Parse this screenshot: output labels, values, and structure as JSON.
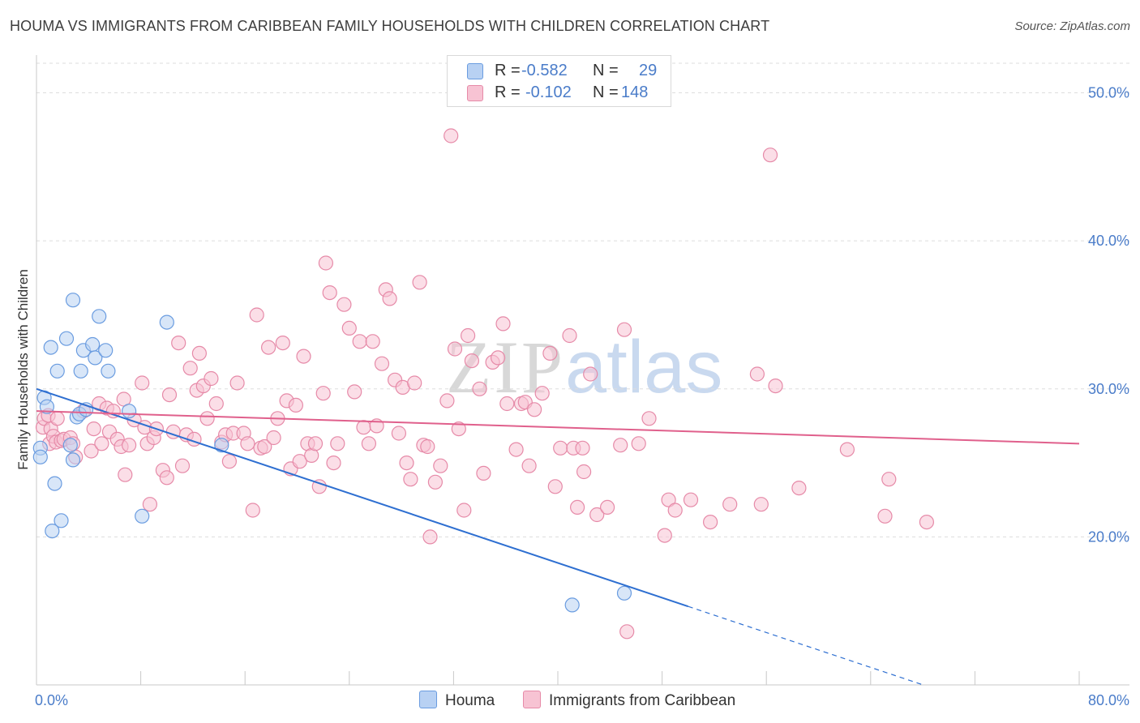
{
  "title": "HOUMA VS IMMIGRANTS FROM CARIBBEAN FAMILY HOUSEHOLDS WITH CHILDREN CORRELATION CHART",
  "source": "Source: ZipAtlas.com",
  "watermark": {
    "zip": "ZIP",
    "atlas": "atlas"
  },
  "colors": {
    "houma_fill": "#b8d1f3",
    "houma_stroke": "#6a9ce0",
    "houma_line": "#2e6fd1",
    "carib_fill": "#f7c3d3",
    "carib_stroke": "#e68aa8",
    "carib_line": "#e0608c",
    "tick_text": "#4a7cc9",
    "grid": "#dddddd"
  },
  "legend": {
    "rows": [
      {
        "r_label": "R =",
        "r_value": "-0.582",
        "n_label": "N =",
        "n_value": "29",
        "swatch": "houma"
      },
      {
        "r_label": "R =",
        "r_value": "-0.102",
        "n_label": "N =",
        "n_value": "148",
        "swatch": "carib"
      }
    ]
  },
  "bottom_legend": {
    "houma": "Houma",
    "carib": "Immigrants from Caribbean"
  },
  "chart_data": {
    "type": "scatter",
    "title": "HOUMA VS IMMIGRANTS FROM CARIBBEAN FAMILY HOUSEHOLDS WITH CHILDREN CORRELATION CHART",
    "xlabel": "",
    "ylabel": "Family Households with Children",
    "xlim": [
      0,
      80
    ],
    "ylim": [
      10,
      52
    ],
    "x_tick_labels": [
      "0.0%",
      "80.0%"
    ],
    "y_ticks": [
      20,
      30,
      40,
      50
    ],
    "y_tick_labels": [
      "20.0%",
      "30.0%",
      "40.0%",
      "50.0%"
    ],
    "grid": true,
    "legend_position": "top-center",
    "series": [
      {
        "name": "Houma",
        "r": -0.582,
        "n": 29,
        "trend": {
          "x0": 0,
          "y0": 30.0,
          "x1": 50,
          "y1": 15.3,
          "dashed_to_x": 68
        },
        "points": [
          [
            0.3,
            26.0
          ],
          [
            0.3,
            25.4
          ],
          [
            0.6,
            29.4
          ],
          [
            0.8,
            28.8
          ],
          [
            1.1,
            32.8
          ],
          [
            1.4,
            23.6
          ],
          [
            1.6,
            31.2
          ],
          [
            1.9,
            21.1
          ],
          [
            1.2,
            20.4
          ],
          [
            2.3,
            33.4
          ],
          [
            2.6,
            26.2
          ],
          [
            2.8,
            25.2
          ],
          [
            2.8,
            36.0
          ],
          [
            3.1,
            28.1
          ],
          [
            3.3,
            28.3
          ],
          [
            3.4,
            31.2
          ],
          [
            3.6,
            32.6
          ],
          [
            3.8,
            28.6
          ],
          [
            4.3,
            33.0
          ],
          [
            4.5,
            32.1
          ],
          [
            4.8,
            34.9
          ],
          [
            5.3,
            32.6
          ],
          [
            5.5,
            31.2
          ],
          [
            7.1,
            28.5
          ],
          [
            8.1,
            21.4
          ],
          [
            10.0,
            34.5
          ],
          [
            14.2,
            26.2
          ],
          [
            41.1,
            15.4
          ],
          [
            45.1,
            16.2
          ]
        ]
      },
      {
        "name": "Immigrants from Caribbean",
        "r": -0.102,
        "n": 148,
        "trend": {
          "x0": 0,
          "y0": 28.5,
          "x1": 80,
          "y1": 26.3
        },
        "points": [
          [
            0.5,
            27.4
          ],
          [
            0.6,
            28.0
          ],
          [
            0.9,
            28.2
          ],
          [
            1.0,
            26.3
          ],
          [
            1.1,
            27.3
          ],
          [
            1.3,
            26.8
          ],
          [
            1.5,
            26.4
          ],
          [
            1.6,
            28.0
          ],
          [
            1.9,
            26.5
          ],
          [
            2.1,
            26.6
          ],
          [
            2.6,
            26.7
          ],
          [
            2.8,
            26.3
          ],
          [
            3.0,
            25.4
          ],
          [
            3.6,
            28.5
          ],
          [
            4.2,
            25.8
          ],
          [
            4.4,
            27.3
          ],
          [
            4.8,
            29.0
          ],
          [
            5.0,
            26.3
          ],
          [
            5.4,
            28.7
          ],
          [
            5.6,
            27.1
          ],
          [
            5.9,
            28.5
          ],
          [
            6.2,
            26.6
          ],
          [
            6.5,
            26.1
          ],
          [
            6.7,
            29.3
          ],
          [
            6.8,
            24.2
          ],
          [
            7.1,
            26.2
          ],
          [
            7.5,
            27.9
          ],
          [
            8.1,
            30.4
          ],
          [
            8.3,
            27.4
          ],
          [
            8.5,
            26.3
          ],
          [
            8.7,
            22.2
          ],
          [
            9.0,
            26.7
          ],
          [
            9.2,
            27.3
          ],
          [
            9.7,
            24.5
          ],
          [
            10.0,
            24.0
          ],
          [
            10.2,
            29.6
          ],
          [
            10.5,
            27.1
          ],
          [
            10.9,
            33.1
          ],
          [
            11.2,
            24.8
          ],
          [
            11.5,
            26.9
          ],
          [
            11.8,
            31.4
          ],
          [
            12.1,
            26.6
          ],
          [
            12.3,
            29.9
          ],
          [
            12.5,
            32.4
          ],
          [
            12.8,
            30.2
          ],
          [
            13.1,
            28.0
          ],
          [
            13.4,
            30.7
          ],
          [
            13.8,
            29.0
          ],
          [
            14.2,
            26.4
          ],
          [
            14.5,
            26.9
          ],
          [
            14.8,
            25.1
          ],
          [
            15.1,
            27.0
          ],
          [
            15.4,
            30.4
          ],
          [
            15.9,
            27.0
          ],
          [
            16.2,
            26.3
          ],
          [
            16.6,
            21.8
          ],
          [
            16.9,
            35.0
          ],
          [
            17.2,
            26.0
          ],
          [
            17.5,
            26.1
          ],
          [
            17.8,
            32.8
          ],
          [
            18.2,
            26.7
          ],
          [
            18.5,
            28.0
          ],
          [
            18.9,
            33.1
          ],
          [
            19.2,
            29.2
          ],
          [
            19.5,
            24.6
          ],
          [
            19.9,
            28.9
          ],
          [
            20.2,
            25.1
          ],
          [
            20.5,
            32.2
          ],
          [
            20.8,
            26.3
          ],
          [
            21.1,
            25.5
          ],
          [
            21.4,
            26.3
          ],
          [
            21.7,
            23.4
          ],
          [
            22.0,
            29.7
          ],
          [
            22.2,
            38.5
          ],
          [
            22.5,
            36.5
          ],
          [
            22.8,
            25.0
          ],
          [
            23.1,
            26.3
          ],
          [
            23.6,
            35.7
          ],
          [
            24.0,
            34.1
          ],
          [
            24.4,
            29.8
          ],
          [
            24.8,
            33.2
          ],
          [
            25.1,
            27.4
          ],
          [
            25.5,
            26.3
          ],
          [
            25.8,
            33.2
          ],
          [
            26.1,
            27.5
          ],
          [
            26.5,
            31.7
          ],
          [
            26.8,
            36.7
          ],
          [
            27.1,
            36.1
          ],
          [
            27.5,
            30.6
          ],
          [
            27.8,
            27.0
          ],
          [
            28.1,
            30.1
          ],
          [
            28.4,
            25.0
          ],
          [
            28.7,
            23.9
          ],
          [
            29.0,
            30.4
          ],
          [
            29.4,
            37.2
          ],
          [
            29.7,
            26.2
          ],
          [
            30.0,
            26.1
          ],
          [
            30.2,
            20.0
          ],
          [
            30.6,
            23.7
          ],
          [
            31.0,
            24.8
          ],
          [
            31.5,
            29.2
          ],
          [
            31.8,
            47.1
          ],
          [
            32.1,
            32.7
          ],
          [
            32.4,
            27.3
          ],
          [
            32.8,
            21.8
          ],
          [
            33.1,
            33.6
          ],
          [
            33.4,
            31.9
          ],
          [
            34.0,
            30.0
          ],
          [
            34.3,
            24.3
          ],
          [
            35.0,
            31.8
          ],
          [
            35.4,
            32.1
          ],
          [
            35.8,
            34.4
          ],
          [
            36.1,
            29.0
          ],
          [
            36.8,
            25.9
          ],
          [
            37.2,
            29.0
          ],
          [
            37.5,
            29.1
          ],
          [
            37.8,
            24.8
          ],
          [
            38.2,
            28.6
          ],
          [
            38.8,
            29.7
          ],
          [
            39.4,
            32.4
          ],
          [
            39.8,
            23.4
          ],
          [
            40.2,
            26.0
          ],
          [
            40.9,
            33.6
          ],
          [
            41.2,
            26.0
          ],
          [
            41.5,
            22.0
          ],
          [
            42.0,
            24.4
          ],
          [
            42.5,
            31.0
          ],
          [
            43.0,
            21.5
          ],
          [
            43.8,
            22.0
          ],
          [
            44.8,
            26.2
          ],
          [
            45.1,
            34.0
          ],
          [
            45.3,
            13.6
          ],
          [
            46.2,
            26.3
          ],
          [
            47.0,
            28.0
          ],
          [
            48.2,
            20.1
          ],
          [
            48.5,
            22.5
          ],
          [
            49.0,
            21.8
          ],
          [
            50.2,
            22.5
          ],
          [
            51.7,
            21.0
          ],
          [
            53.2,
            22.2
          ],
          [
            55.3,
            31.0
          ],
          [
            55.6,
            22.2
          ],
          [
            56.3,
            45.8
          ],
          [
            56.7,
            30.2
          ],
          [
            58.5,
            23.3
          ],
          [
            62.2,
            25.9
          ],
          [
            65.1,
            21.4
          ],
          [
            65.4,
            23.9
          ],
          [
            68.3,
            21.0
          ],
          [
            41.9,
            26.0
          ]
        ]
      }
    ]
  }
}
